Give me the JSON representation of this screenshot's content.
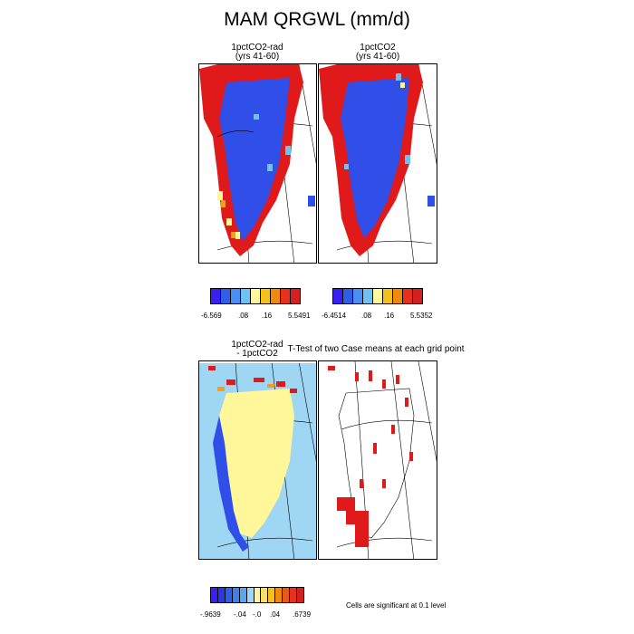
{
  "title": "MAM QRGWL (mm/d)",
  "panels": {
    "p1": {
      "line1": "1pctCO2-rad",
      "line2": "(yrs 41-60)"
    },
    "p2": {
      "line1": "1pctCO2",
      "line2": "(yrs 41-60)"
    },
    "p3": {
      "line1": "1pctCO2-rad",
      "line2": "- 1pctCO2"
    },
    "p4": {
      "line1": "T-Test of two Case means at each grid point"
    }
  },
  "colorbars": {
    "cb1": {
      "colors": [
        "#3a1ff0",
        "#2f5fe6",
        "#4c8ff2",
        "#6fc1f2",
        "#fff79a",
        "#f2c11b",
        "#f08a0c",
        "#e8301c",
        "#d61f1f"
      ],
      "labels": [
        "-6.569",
        ".08",
        ".16",
        "5.5491"
      ]
    },
    "cb2": {
      "colors": [
        "#3a1ff0",
        "#2f5fe6",
        "#4c8ff2",
        "#6fc1f2",
        "#fff79a",
        "#f2c11b",
        "#f08a0c",
        "#e8301c",
        "#d61f1f"
      ],
      "labels": [
        "-6.4514",
        ".08",
        ".16",
        "5.5352"
      ]
    },
    "cb3": {
      "colors": [
        "#3a1ff0",
        "#2a37e8",
        "#2f5fe6",
        "#3f7fe8",
        "#5aa6ef",
        "#9fd6f4",
        "#fff79a",
        "#f7e06a",
        "#f2c11b",
        "#f08a0c",
        "#e85a14",
        "#e8301c",
        "#d61f1f"
      ],
      "labels": [
        "-.9639",
        "-.04",
        "-.0",
        ".04",
        ".6739"
      ]
    }
  },
  "note": "Cells are significant at 0.1 level",
  "colors": {
    "blue": "#2f4fe8",
    "red": "#e01a1a",
    "yellow": "#fff79a",
    "lightblue": "#6fc1f2",
    "orange": "#f2a01b"
  }
}
